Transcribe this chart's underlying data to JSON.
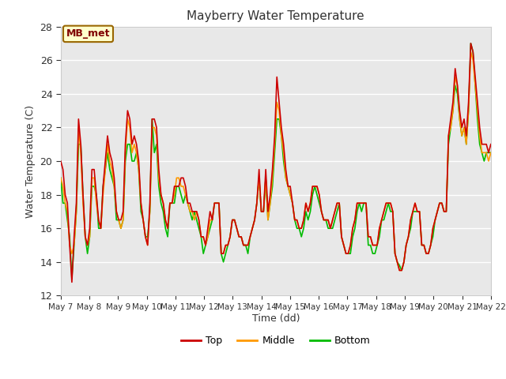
{
  "title": "Mayberry Water Temperature",
  "xlabel": "Time (dd)",
  "ylabel": "Water Temperature (C)",
  "ylim": [
    12,
    28
  ],
  "xlim": [
    0,
    360
  ],
  "bg_color": "#e8e8e8",
  "fig_bg_color": "#ffffff",
  "label_color": "#800000",
  "annotation_text": "MB_met",
  "annotation_box_color": "#ffffcc",
  "annotation_border_color": "#996600",
  "line_colors": {
    "top": "#cc0000",
    "middle": "#ff9900",
    "bottom": "#00bb00"
  },
  "line_width": 1.2,
  "legend_labels": [
    "Top",
    "Middle",
    "Bottom"
  ],
  "x_tick_labels": [
    "May 7",
    "May 8",
    "May 9",
    "May 10",
    "May 11",
    "May 12",
    "May 13",
    "May 14",
    "May 15",
    "May 16",
    "May 17",
    "May 18",
    "May 19",
    "May 20",
    "May 21",
    "May 22"
  ],
  "x_tick_positions": [
    0,
    24,
    48,
    72,
    96,
    120,
    144,
    168,
    192,
    216,
    240,
    264,
    288,
    312,
    336,
    360
  ],
  "top_data": [
    20.0,
    19.5,
    18.0,
    17.5,
    15.0,
    12.8,
    15.5,
    17.5,
    22.5,
    21.0,
    18.0,
    15.5,
    15.0,
    16.0,
    19.5,
    19.5,
    18.0,
    16.5,
    16.0,
    18.5,
    20.0,
    21.5,
    20.5,
    20.0,
    19.0,
    17.0,
    16.5,
    16.5,
    17.0,
    21.0,
    23.0,
    22.5,
    21.0,
    21.5,
    21.0,
    20.0,
    17.5,
    16.5,
    15.5,
    15.0,
    17.5,
    22.5,
    22.5,
    22.0,
    19.5,
    18.0,
    17.5,
    16.5,
    16.0,
    17.5,
    17.5,
    18.5,
    18.5,
    18.5,
    19.0,
    19.0,
    18.5,
    17.5,
    17.5,
    17.0,
    17.0,
    17.0,
    16.5,
    15.5,
    15.5,
    15.0,
    16.0,
    17.0,
    16.5,
    17.5,
    17.5,
    17.5,
    14.5,
    14.5,
    15.0,
    15.0,
    15.5,
    16.5,
    16.5,
    16.0,
    15.5,
    15.5,
    15.0,
    15.0,
    15.0,
    15.5,
    16.0,
    16.5,
    17.5,
    19.5,
    17.0,
    17.0,
    19.5,
    17.0,
    18.0,
    19.5,
    21.5,
    25.0,
    23.5,
    22.0,
    21.0,
    19.5,
    18.5,
    18.5,
    17.5,
    16.5,
    16.5,
    16.0,
    16.0,
    16.5,
    17.5,
    17.0,
    17.5,
    18.5,
    18.5,
    18.5,
    18.0,
    17.0,
    16.5,
    16.5,
    16.5,
    16.0,
    16.5,
    17.0,
    17.5,
    17.5,
    15.5,
    15.0,
    14.5,
    14.5,
    15.0,
    16.0,
    16.5,
    17.5,
    17.5,
    17.5,
    17.5,
    17.5,
    15.5,
    15.5,
    15.0,
    15.0,
    15.0,
    16.0,
    16.5,
    17.0,
    17.5,
    17.5,
    17.5,
    17.0,
    14.5,
    14.0,
    13.5,
    13.5,
    14.0,
    15.0,
    15.5,
    16.5,
    17.0,
    17.5,
    17.0,
    17.0,
    15.0,
    15.0,
    14.5,
    14.5,
    15.0,
    16.0,
    16.5,
    17.0,
    17.5,
    17.5,
    17.0,
    17.0,
    21.5,
    22.5,
    23.5,
    25.5,
    24.5,
    23.0,
    22.0,
    22.5,
    21.5,
    23.5,
    27.0,
    26.5,
    25.0,
    23.5,
    22.0,
    21.0,
    21.0,
    21.0,
    20.5,
    21.0
  ],
  "middle_data": [
    19.0,
    18.5,
    17.5,
    17.0,
    15.0,
    14.5,
    15.0,
    17.0,
    22.0,
    20.5,
    17.5,
    15.5,
    15.0,
    15.5,
    19.0,
    19.0,
    17.5,
    16.5,
    16.0,
    18.0,
    19.5,
    21.0,
    20.0,
    19.5,
    18.5,
    17.0,
    16.5,
    16.0,
    16.5,
    20.5,
    22.5,
    22.0,
    20.5,
    21.0,
    20.5,
    19.5,
    17.5,
    16.5,
    15.5,
    15.0,
    17.0,
    22.0,
    22.0,
    21.5,
    19.0,
    18.0,
    17.5,
    16.5,
    16.0,
    17.5,
    17.5,
    18.0,
    19.0,
    19.0,
    18.5,
    18.5,
    18.0,
    17.5,
    17.0,
    17.0,
    16.5,
    17.0,
    16.5,
    15.5,
    15.5,
    15.0,
    15.5,
    16.5,
    16.5,
    17.5,
    17.5,
    17.5,
    14.5,
    14.5,
    15.0,
    15.0,
    15.5,
    16.5,
    16.5,
    16.0,
    15.5,
    15.5,
    15.0,
    15.0,
    15.0,
    15.5,
    16.0,
    16.5,
    17.5,
    19.0,
    17.0,
    17.0,
    19.0,
    16.5,
    17.5,
    19.0,
    21.0,
    23.5,
    23.0,
    21.5,
    20.5,
    19.0,
    18.5,
    18.0,
    17.5,
    16.5,
    16.5,
    16.0,
    16.0,
    16.5,
    17.5,
    17.0,
    17.5,
    18.5,
    18.5,
    18.5,
    18.0,
    17.0,
    16.5,
    16.5,
    16.5,
    16.0,
    16.5,
    17.0,
    17.5,
    17.5,
    15.5,
    15.0,
    14.5,
    14.5,
    15.0,
    16.0,
    16.5,
    17.5,
    17.5,
    17.5,
    17.5,
    17.5,
    15.5,
    15.5,
    15.0,
    15.0,
    15.0,
    16.0,
    16.5,
    17.0,
    17.5,
    17.5,
    17.5,
    17.0,
    14.5,
    14.0,
    13.5,
    13.5,
    14.0,
    15.0,
    15.5,
    16.5,
    17.0,
    17.5,
    17.0,
    17.0,
    15.0,
    15.0,
    14.5,
    14.5,
    15.0,
    16.0,
    16.5,
    17.0,
    17.5,
    17.5,
    17.0,
    17.0,
    21.5,
    22.0,
    23.0,
    25.0,
    24.5,
    22.5,
    21.5,
    22.0,
    21.0,
    23.0,
    26.5,
    26.0,
    24.5,
    23.0,
    21.5,
    20.5,
    20.5,
    20.5,
    20.0,
    20.5
  ],
  "bottom_data": [
    19.0,
    17.5,
    17.5,
    16.5,
    15.5,
    13.0,
    15.0,
    17.0,
    21.0,
    21.0,
    18.0,
    15.5,
    14.5,
    15.5,
    18.5,
    18.5,
    18.0,
    16.0,
    16.0,
    18.5,
    19.5,
    20.5,
    19.5,
    19.0,
    18.5,
    16.5,
    16.5,
    16.0,
    16.5,
    20.0,
    21.0,
    21.0,
    20.0,
    20.0,
    20.5,
    19.5,
    17.0,
    16.5,
    15.5,
    15.5,
    17.0,
    22.5,
    20.5,
    21.0,
    18.5,
    17.5,
    17.0,
    16.0,
    15.5,
    17.5,
    17.5,
    17.5,
    18.5,
    18.5,
    18.0,
    17.5,
    18.0,
    17.5,
    17.0,
    16.5,
    17.0,
    16.5,
    16.0,
    15.5,
    14.5,
    15.0,
    15.5,
    16.0,
    16.5,
    17.5,
    17.5,
    17.5,
    14.5,
    14.0,
    14.5,
    15.0,
    15.5,
    16.5,
    16.5,
    16.0,
    15.5,
    15.5,
    15.0,
    15.0,
    14.5,
    15.5,
    16.0,
    16.5,
    17.5,
    19.0,
    17.0,
    17.0,
    19.0,
    16.5,
    17.5,
    18.5,
    20.5,
    22.5,
    22.5,
    21.5,
    20.0,
    19.0,
    18.5,
    18.0,
    17.5,
    16.5,
    16.0,
    16.0,
    15.5,
    16.0,
    17.0,
    16.5,
    17.0,
    18.0,
    18.5,
    18.0,
    17.5,
    17.0,
    16.5,
    16.5,
    16.0,
    16.0,
    16.0,
    16.5,
    17.0,
    17.5,
    15.5,
    15.0,
    14.5,
    14.5,
    14.5,
    15.5,
    16.0,
    17.0,
    17.5,
    17.0,
    17.5,
    17.5,
    15.0,
    15.0,
    14.5,
    14.5,
    15.0,
    15.5,
    16.5,
    16.5,
    17.0,
    17.5,
    17.0,
    17.0,
    14.5,
    14.0,
    13.8,
    13.5,
    14.0,
    15.0,
    15.5,
    16.0,
    17.0,
    17.0,
    17.0,
    17.0,
    15.0,
    15.0,
    14.5,
    14.5,
    15.0,
    15.5,
    16.5,
    17.0,
    17.5,
    17.5,
    17.0,
    17.0,
    21.0,
    22.0,
    23.0,
    24.5,
    24.0,
    22.5,
    21.5,
    22.0,
    21.0,
    23.0,
    27.0,
    26.5,
    24.5,
    22.5,
    21.0,
    20.5,
    20.0,
    20.5,
    20.5,
    20.5
  ]
}
